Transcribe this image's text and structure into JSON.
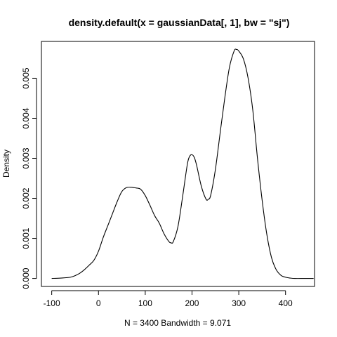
{
  "chart_data": {
    "type": "line",
    "title": "density.default(x = gaussianData[, 1], bw = \"sj\")",
    "xlabel": "N = 3400   Bandwidth = 9.071",
    "ylabel": "Density",
    "xlim": [
      -122,
      462
    ],
    "ylim": [
      -0.0002,
      0.00592
    ],
    "x_ticks": [
      -100,
      0,
      100,
      200,
      300,
      400
    ],
    "x_tick_labels": [
      "-100",
      "0",
      "100",
      "200",
      "300",
      "400"
    ],
    "y_ticks": [
      0,
      0.001,
      0.002,
      0.003,
      0.004,
      0.005
    ],
    "y_tick_labels": [
      "0.000",
      "0.001",
      "0.002",
      "0.003",
      "0.004",
      "0.005"
    ],
    "grid": false,
    "series": [
      {
        "x": [
          -100,
          -80,
          -60,
          -50,
          -40,
          -30,
          -20,
          -10,
          0,
          10,
          20,
          30,
          40,
          50,
          60,
          70,
          75,
          80,
          90,
          100,
          110,
          120,
          130,
          140,
          150,
          155,
          160,
          170,
          180,
          190,
          195,
          200,
          205,
          210,
          220,
          230,
          235,
          240,
          250,
          260,
          270,
          280,
          290,
          295,
          300,
          310,
          320,
          330,
          340,
          350,
          360,
          370,
          380,
          390,
          400,
          410,
          420,
          440,
          460
        ],
        "y": [
          0.0,
          1e-05,
          3e-05,
          7e-05,
          0.00013,
          0.00022,
          0.00033,
          0.00045,
          0.00068,
          0.00102,
          0.00132,
          0.00162,
          0.00192,
          0.00217,
          0.00227,
          0.00228,
          0.00227,
          0.00226,
          0.00223,
          0.00207,
          0.00183,
          0.00157,
          0.00138,
          0.00112,
          0.00093,
          0.00089,
          0.00092,
          0.0013,
          0.00205,
          0.00285,
          0.00305,
          0.00309,
          0.00302,
          0.00282,
          0.0023,
          0.00198,
          0.00198,
          0.00208,
          0.00272,
          0.00362,
          0.0045,
          0.00527,
          0.00568,
          0.00572,
          0.00568,
          0.00548,
          0.005,
          0.0042,
          0.003,
          0.00195,
          0.0011,
          0.00052,
          0.00022,
          8e-05,
          3e-05,
          1e-05,
          0.0,
          0.0,
          0.0
        ]
      }
    ]
  }
}
